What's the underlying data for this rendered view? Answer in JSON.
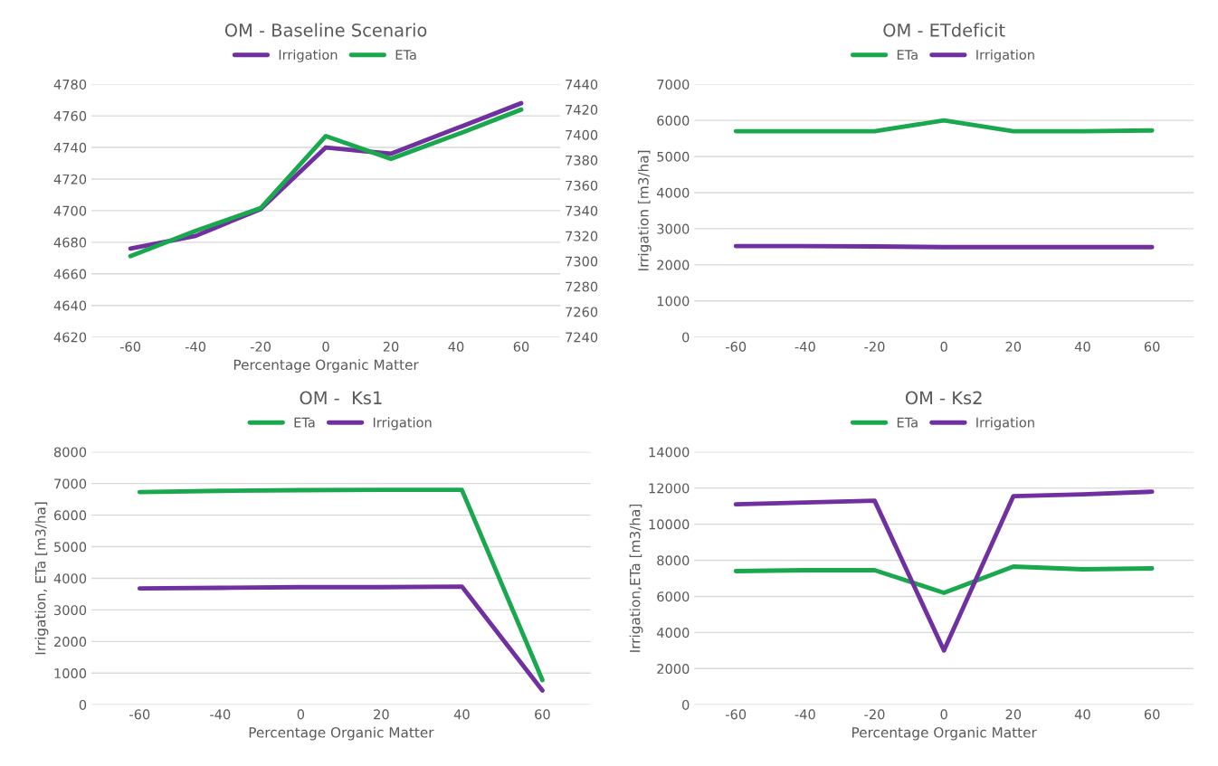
{
  "chart_data": [
    {
      "type": "line",
      "title": "OM - Baseline Scenario",
      "xlabel": "Percentage Organic Matter",
      "categories": [
        "-60",
        "-40",
        "-20",
        "0",
        "20",
        "40",
        "60"
      ],
      "legend": "top",
      "grid": "y",
      "ylim": [
        4620,
        4780
      ],
      "yticks": [
        4620,
        4640,
        4660,
        4680,
        4700,
        4720,
        4740,
        4760,
        4780
      ],
      "y2lim": [
        7240,
        7440
      ],
      "y2ticks": [
        7240,
        7260,
        7280,
        7300,
        7320,
        7340,
        7360,
        7380,
        7400,
        7420,
        7440
      ],
      "series": [
        {
          "name": "Irrigation",
          "color": "#7030a0",
          "values": [
            4676,
            4684,
            4701,
            4740,
            4736,
            4752,
            4768
          ]
        },
        {
          "name": "ETa",
          "color": "#1aa84e",
          "axis": "y2",
          "values": [
            7304,
            7324,
            7342,
            7399,
            7381,
            7400,
            7420
          ]
        }
      ]
    },
    {
      "type": "line",
      "title": "OM - ETdeficit",
      "ylabel": "Irrigation [m3/ha]",
      "categories": [
        "-60",
        "-40",
        "-20",
        "0",
        "20",
        "40",
        "60"
      ],
      "legend": "top",
      "grid": "y",
      "ylim": [
        0,
        7000
      ],
      "yticks": [
        0,
        1000,
        2000,
        3000,
        4000,
        5000,
        6000,
        7000
      ],
      "series": [
        {
          "name": "ETa",
          "color": "#1aa84e",
          "values": [
            5700,
            5700,
            5700,
            6000,
            5700,
            5700,
            5720
          ]
        },
        {
          "name": "Irrigation",
          "color": "#7030a0",
          "values": [
            2520,
            2520,
            2510,
            2490,
            2490,
            2490,
            2490
          ]
        }
      ]
    },
    {
      "type": "line",
      "title": "OM -  Ks1",
      "xlabel": "Percentage Organic Matter",
      "ylabel": "Irrigation, ETa [m3/ha]",
      "categories": [
        "-60",
        "-40",
        "0",
        "20",
        "40",
        "60"
      ],
      "legend": "top",
      "grid": "y",
      "ylim": [
        0,
        8000
      ],
      "yticks": [
        0,
        1000,
        2000,
        3000,
        4000,
        5000,
        6000,
        7000,
        8000
      ],
      "series": [
        {
          "name": "ETa",
          "color": "#1aa84e",
          "values": [
            6730,
            6770,
            6790,
            6800,
            6800,
            780
          ]
        },
        {
          "name": "Irrigation",
          "color": "#7030a0",
          "values": [
            3680,
            3700,
            3720,
            3720,
            3740,
            450
          ]
        }
      ]
    },
    {
      "type": "line",
      "title": "OM - Ks2",
      "xlabel": "Percentage Organic Matter",
      "ylabel": "Irrigation,ETa [m3/ha]",
      "categories": [
        "-60",
        "-40",
        "-20",
        "0",
        "20",
        "40",
        "60"
      ],
      "legend": "top",
      "grid": "y",
      "ylim": [
        0,
        14000
      ],
      "yticks": [
        0,
        2000,
        4000,
        6000,
        8000,
        10000,
        12000,
        14000
      ],
      "series": [
        {
          "name": "ETa",
          "color": "#1aa84e",
          "values": [
            7400,
            7450,
            7450,
            6200,
            7650,
            7500,
            7550
          ]
        },
        {
          "name": "Irrigation",
          "color": "#7030a0",
          "values": [
            11100,
            11200,
            11300,
            3000,
            11550,
            11650,
            11800
          ]
        }
      ]
    }
  ]
}
